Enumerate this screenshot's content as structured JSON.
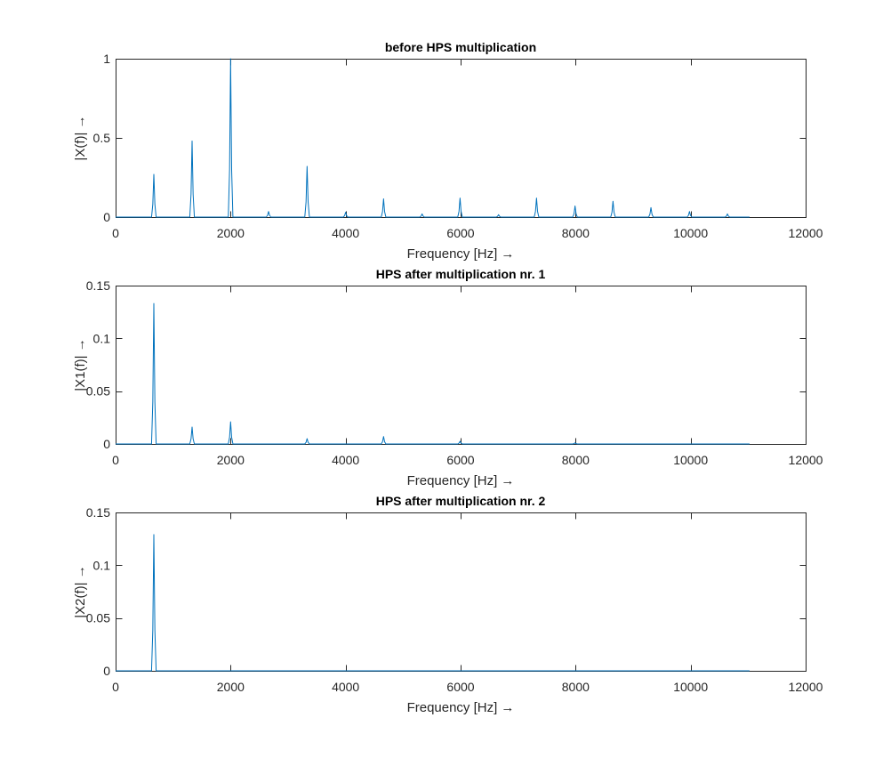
{
  "chart_data": [
    {
      "type": "line",
      "title": "before HPS multiplication",
      "xlabel": "Frequency [Hz] →",
      "ylabel": "|X(f)| →",
      "xlim": [
        0,
        12000
      ],
      "ylim": [
        0,
        1
      ],
      "xticks": [
        0,
        2000,
        4000,
        6000,
        8000,
        10000,
        12000
      ],
      "xtick_labels": [
        "0",
        "2000",
        "4000",
        "6000",
        "8000",
        "10000",
        "12000"
      ],
      "yticks": [
        0,
        0.5,
        1
      ],
      "ytick_labels": [
        "0",
        "0.5",
        "1"
      ],
      "grid": false,
      "series": [
        {
          "color": "#0072BD",
          "x_end": 11025,
          "peaks": [
            [
              665,
              0.27
            ],
            [
              1330,
              0.48
            ],
            [
              2000,
              1.0
            ],
            [
              2660,
              0.035
            ],
            [
              3330,
              0.32
            ],
            [
              4000,
              0.03
            ],
            [
              4660,
              0.115
            ],
            [
              5330,
              0.02
            ],
            [
              5990,
              0.12
            ],
            [
              6660,
              0.015
            ],
            [
              7320,
              0.12
            ],
            [
              7990,
              0.07
            ],
            [
              8650,
              0.1
            ],
            [
              9310,
              0.06
            ],
            [
              9980,
              0.035
            ],
            [
              10640,
              0.02
            ]
          ]
        }
      ]
    },
    {
      "type": "line",
      "title": "HPS after multiplication nr. 1",
      "xlabel": "Frequency [Hz] →",
      "ylabel": "|X1(f)| →",
      "xlim": [
        0,
        12000
      ],
      "ylim": [
        0,
        0.15
      ],
      "xticks": [
        0,
        2000,
        4000,
        6000,
        8000,
        10000,
        12000
      ],
      "xtick_labels": [
        "0",
        "2000",
        "4000",
        "6000",
        "8000",
        "10000",
        "12000"
      ],
      "yticks": [
        0,
        0.05,
        0.1,
        0.15
      ],
      "ytick_labels": [
        "0",
        "0.05",
        "0.1",
        "0.15"
      ],
      "grid": false,
      "series": [
        {
          "color": "#0072BD",
          "x_end": 11025,
          "peaks": [
            [
              665,
              0.133
            ],
            [
              1330,
              0.016
            ],
            [
              2000,
              0.021
            ],
            [
              3330,
              0.005
            ],
            [
              4660,
              0.007
            ],
            [
              5990,
              0.0025
            ],
            [
              7990,
              0.001
            ]
          ]
        }
      ]
    },
    {
      "type": "line",
      "title": "HPS after multiplication nr. 2",
      "xlabel": "Frequency [Hz] →",
      "ylabel": "|X2(f)| →",
      "xlim": [
        0,
        12000
      ],
      "ylim": [
        0,
        0.15
      ],
      "xticks": [
        0,
        2000,
        4000,
        6000,
        8000,
        10000,
        12000
      ],
      "xtick_labels": [
        "0",
        "2000",
        "4000",
        "6000",
        "8000",
        "10000",
        "12000"
      ],
      "yticks": [
        0,
        0.05,
        0.1,
        0.15
      ],
      "ytick_labels": [
        "0",
        "0.05",
        "0.1",
        "0.15"
      ],
      "grid": false,
      "series": [
        {
          "color": "#0072BD",
          "x_end": 11025,
          "peaks": [
            [
              665,
              0.129
            ]
          ]
        }
      ]
    }
  ]
}
